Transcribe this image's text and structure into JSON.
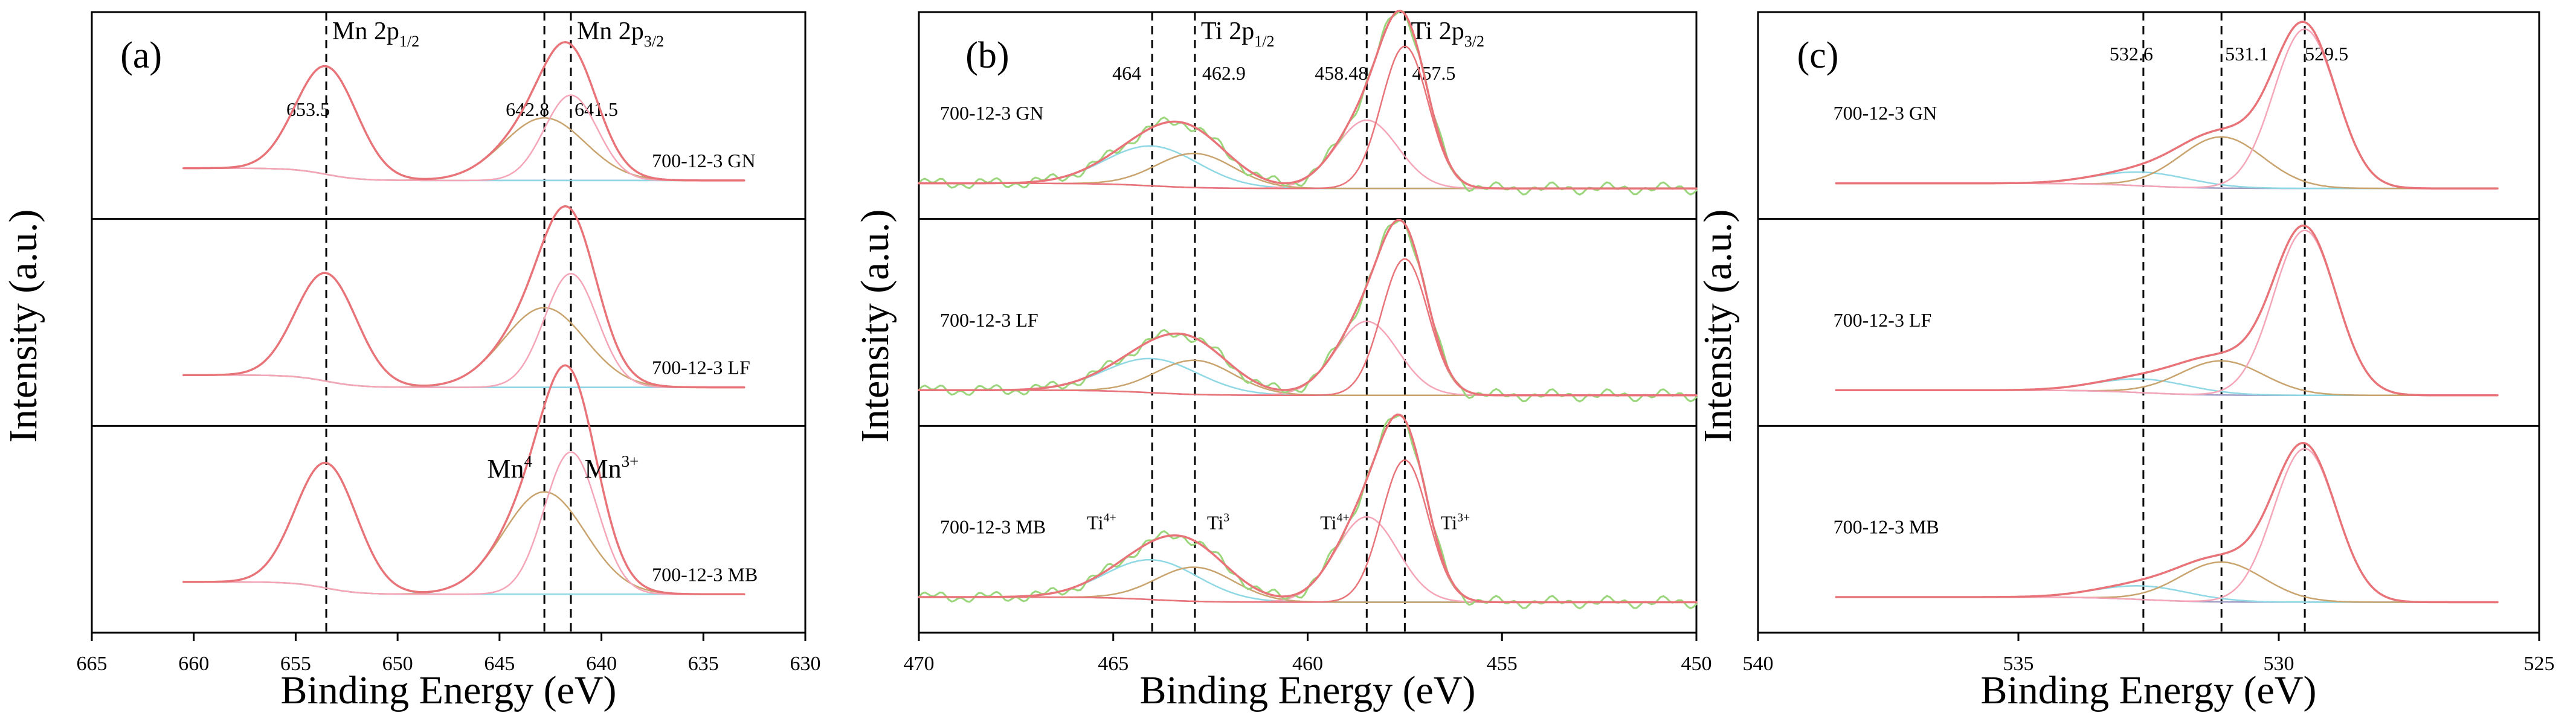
{
  "colors": {
    "envelope": "#9bd67d",
    "peak_major": "#e8747a",
    "peak_minor": "#d87aa6",
    "peak_light": "#f4a6b8",
    "component_cyan": "#8fd8e4",
    "component_tan": "#c9a46f",
    "background_line": "#a09ec7"
  },
  "chart_data": [
    {
      "type": "line",
      "panel_label": "(a)",
      "xlabel": "Binding Energy (eV)",
      "ylabel": "Intensity (a.u.)",
      "xlim": [
        665,
        630
      ],
      "x_ticks": [
        "665",
        "660",
        "655",
        "650",
        "645",
        "640",
        "635",
        "630"
      ],
      "x_tick_values": [
        665,
        660,
        655,
        650,
        645,
        640,
        635,
        630
      ],
      "data_range": [
        660.5,
        633
      ],
      "reference_lines": [
        653.5,
        642.8,
        641.5
      ],
      "header_labels": [
        {
          "base": "Mn 2p",
          "sub": "1/2",
          "x": 653.5
        },
        {
          "base": "Mn 2p",
          "sub": "3/2",
          "x": 641.5
        }
      ],
      "peak_labels": [
        {
          "text": "653.5",
          "x": 653.5
        },
        {
          "text": "642.8",
          "x": 642.8
        },
        {
          "text": "641.5",
          "x": 641.5
        }
      ],
      "series": [
        {
          "name": "700-12-3 GN",
          "baseline": 0.12,
          "peaks": [
            [
              653.5,
              1.5,
              0.95
            ],
            [
              642.8,
              2.0,
              0.55
            ],
            [
              641.5,
              1.3,
              0.75
            ]
          ]
        },
        {
          "name": "700-12-3 LF",
          "baseline": 0.12,
          "peaks": [
            [
              653.5,
              1.5,
              0.95
            ],
            [
              642.8,
              2.0,
              0.7
            ],
            [
              641.5,
              1.3,
              1.0
            ]
          ]
        },
        {
          "name": "700-12-3 MB",
          "baseline": 0.12,
          "peaks": [
            [
              653.5,
              1.5,
              1.1
            ],
            [
              642.8,
              2.0,
              0.9
            ],
            [
              641.5,
              1.3,
              1.25
            ]
          ]
        }
      ],
      "species_labels": [
        {
          "base": "Mn",
          "sup": "4",
          "series": 2,
          "x": 644.5
        },
        {
          "base": "Mn",
          "sup": "3+",
          "series": 2,
          "x": 639.5
        }
      ]
    },
    {
      "type": "line",
      "panel_label": "(b)",
      "xlabel": "Binding Energy (eV)",
      "ylabel": "Intensity (a.u.)",
      "xlim": [
        470,
        450
      ],
      "x_ticks": [
        "470",
        "465",
        "460",
        "455",
        "450"
      ],
      "x_tick_values": [
        470,
        465,
        460,
        455,
        450
      ],
      "data_range": [
        470,
        450
      ],
      "reference_lines": [
        464,
        462.9,
        458.48,
        457.5
      ],
      "header_labels": [
        {
          "base": "Ti 2p",
          "sub": "1/2",
          "x": 462.9
        },
        {
          "base": "Ti 2p",
          "sub": "3/2",
          "x": 457.5
        }
      ],
      "peak_labels": [
        {
          "text": "464",
          "x": 464
        },
        {
          "text": "462.9",
          "x": 462.9
        },
        {
          "text": "458.48",
          "x": 458.48
        },
        {
          "text": "457.5",
          "x": 457.5
        }
      ],
      "series": [
        {
          "name": "700-12-3 GN",
          "baseline": 0.05,
          "peaks": [
            [
              464,
              1.2,
              0.35
            ],
            [
              462.9,
              1.0,
              0.3
            ],
            [
              458.48,
              0.8,
              0.6
            ],
            [
              457.5,
              0.6,
              1.25
            ]
          ]
        },
        {
          "name": "700-12-3 LF",
          "baseline": 0.05,
          "peaks": [
            [
              464,
              1.2,
              0.3
            ],
            [
              462.9,
              1.0,
              0.3
            ],
            [
              458.48,
              0.8,
              0.65
            ],
            [
              457.5,
              0.6,
              1.2
            ]
          ]
        },
        {
          "name": "700-12-3 MB",
          "baseline": 0.05,
          "peaks": [
            [
              464,
              1.2,
              0.35
            ],
            [
              462.9,
              1.0,
              0.3
            ],
            [
              458.48,
              0.8,
              0.75
            ],
            [
              457.5,
              0.6,
              1.25
            ]
          ]
        }
      ],
      "species_labels": [
        {
          "base": "Ti",
          "sup": "4+",
          "series": 2,
          "x": 465.3
        },
        {
          "base": "Ti",
          "sup": "3",
          "series": 2,
          "x": 462.3
        },
        {
          "base": "Ti",
          "sup": "4+",
          "series": 2,
          "x": 459.3
        },
        {
          "base": "Ti",
          "sup": "3+",
          "series": 2,
          "x": 456.2
        }
      ]
    },
    {
      "type": "line",
      "panel_label": "(c)",
      "xlabel": "Binding Energy (eV)",
      "ylabel": "Intensity (a.u.)",
      "xlim": [
        540,
        525
      ],
      "x_ticks": [
        "540",
        "535",
        "530",
        "525"
      ],
      "x_tick_values": [
        540,
        535,
        530,
        525
      ],
      "data_range": [
        538.5,
        525.8
      ],
      "reference_lines": [
        532.6,
        531.1,
        529.5
      ],
      "header_labels": [],
      "peak_labels": [
        {
          "text": "532.6",
          "x": 532.6
        },
        {
          "text": "531.1",
          "x": 531.1
        },
        {
          "text": "529.5",
          "x": 529.5
        }
      ],
      "series": [
        {
          "name": "700-12-3 GN",
          "baseline": 0.05,
          "peaks": [
            [
              532.6,
              0.9,
              0.12
            ],
            [
              531.1,
              0.8,
              0.45
            ],
            [
              529.5,
              0.6,
              1.4
            ]
          ]
        },
        {
          "name": "700-12-3 LF",
          "baseline": 0.05,
          "peaks": [
            [
              532.6,
              0.9,
              0.12
            ],
            [
              531.1,
              0.8,
              0.3
            ],
            [
              529.5,
              0.6,
              1.45
            ]
          ]
        },
        {
          "name": "700-12-3 MB",
          "baseline": 0.05,
          "peaks": [
            [
              532.6,
              0.9,
              0.12
            ],
            [
              531.1,
              0.8,
              0.35
            ],
            [
              529.5,
              0.6,
              1.35
            ]
          ]
        }
      ],
      "species_labels": []
    }
  ]
}
